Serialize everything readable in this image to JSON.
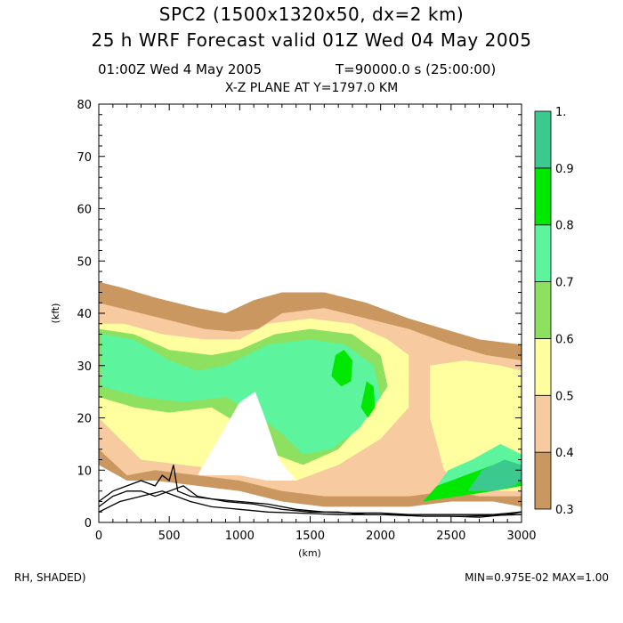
{
  "header": {
    "title1": "SPC2 (1500x1320x50, dx=2 km)",
    "title2": "25 h WRF Forecast valid 01Z Wed 04 May 2005",
    "time_left": "01:00Z Wed  4 May 2005",
    "time_right": "T=90000.0 s (25:00:00)",
    "plane": "X-Z PLANE AT Y=1797.0 KM"
  },
  "footer": {
    "left": "RH, SHADED)",
    "right": "MIN=0.975E-02 MAX=1.00"
  },
  "colors": {
    "rh_levels": [
      "#c9975f",
      "#f7caa0",
      "#ffffa0",
      "#8ee060",
      "#5cf49c",
      "#00e800",
      "#3cc98f"
    ]
  },
  "chart_data": {
    "type": "heatmap",
    "title": "X-Z PLANE AT Y=1797.0 KM",
    "xlabel": "(km)",
    "ylabel": "(kft)",
    "xlim": [
      0,
      3000
    ],
    "ylim": [
      0,
      80
    ],
    "x_ticks": [
      "0",
      "500",
      "1000",
      "1500",
      "2000",
      "2500",
      "3000"
    ],
    "y_ticks": [
      "0",
      "10",
      "20",
      "30",
      "40",
      "50",
      "60",
      "70",
      "80"
    ],
    "variable": "RH, SHADED",
    "colorbar": {
      "levels": [
        0.3,
        0.4,
        0.5,
        0.6,
        0.7,
        0.8,
        0.9,
        1.0
      ],
      "labels": [
        "0.3",
        "0.4",
        "0.5",
        "0.6",
        "0.7",
        "0.8",
        "0.9",
        "1."
      ]
    },
    "regions": [
      {
        "level": 0.3,
        "points": [
          [
            0,
            11
          ],
          [
            0,
            46
          ],
          [
            150,
            45
          ],
          [
            400,
            43
          ],
          [
            700,
            41
          ],
          [
            900,
            40
          ],
          [
            1100,
            42.5
          ],
          [
            1300,
            44
          ],
          [
            1600,
            44
          ],
          [
            1900,
            42
          ],
          [
            2200,
            39
          ],
          [
            2450,
            37
          ],
          [
            2700,
            35
          ],
          [
            3000,
            34
          ],
          [
            3000,
            3
          ],
          [
            2800,
            4
          ],
          [
            2500,
            4
          ],
          [
            2200,
            3
          ],
          [
            1900,
            3
          ],
          [
            1600,
            3
          ],
          [
            1300,
            4
          ],
          [
            1000,
            6
          ],
          [
            700,
            7
          ],
          [
            400,
            8
          ],
          [
            200,
            8
          ]
        ]
      },
      {
        "level": 0.4,
        "points": [
          [
            0,
            14
          ],
          [
            0,
            42
          ],
          [
            150,
            41
          ],
          [
            450,
            39
          ],
          [
            750,
            37
          ],
          [
            950,
            36.5
          ],
          [
            1130,
            37
          ],
          [
            1300,
            40
          ],
          [
            1600,
            41
          ],
          [
            1900,
            39
          ],
          [
            2200,
            37
          ],
          [
            2500,
            34
          ],
          [
            2750,
            32
          ],
          [
            3000,
            31
          ],
          [
            3000,
            5
          ],
          [
            2700,
            5
          ],
          [
            2500,
            6
          ],
          [
            2200,
            5
          ],
          [
            1900,
            5
          ],
          [
            1600,
            5
          ],
          [
            1300,
            6
          ],
          [
            1000,
            8
          ],
          [
            700,
            9
          ],
          [
            400,
            10
          ],
          [
            200,
            9
          ]
        ]
      },
      {
        "level": 0.5,
        "points": [
          [
            0,
            20
          ],
          [
            0,
            38
          ],
          [
            180,
            38
          ],
          [
            450,
            36
          ],
          [
            750,
            35
          ],
          [
            1000,
            35
          ],
          [
            1200,
            38
          ],
          [
            1500,
            39
          ],
          [
            1800,
            38
          ],
          [
            2050,
            35
          ],
          [
            2200,
            32
          ],
          [
            2200,
            22
          ],
          [
            2000,
            16
          ],
          [
            1700,
            11
          ],
          [
            1400,
            8
          ],
          [
            1100,
            9
          ],
          [
            900,
            10
          ],
          [
            600,
            11
          ],
          [
            300,
            12
          ]
        ]
      },
      {
        "level": 0.5,
        "points": [
          [
            2350,
            30
          ],
          [
            2600,
            31
          ],
          [
            2850,
            30
          ],
          [
            3000,
            29
          ],
          [
            3000,
            6
          ],
          [
            2800,
            6
          ],
          [
            2600,
            7
          ],
          [
            2450,
            10
          ],
          [
            2350,
            20
          ]
        ]
      },
      {
        "level": 0.6,
        "points": [
          [
            0,
            24
          ],
          [
            0,
            37
          ],
          [
            250,
            36
          ],
          [
            500,
            33
          ],
          [
            800,
            32
          ],
          [
            1000,
            33
          ],
          [
            1250,
            36
          ],
          [
            1500,
            37
          ],
          [
            1800,
            36
          ],
          [
            2000,
            32
          ],
          [
            2050,
            26
          ],
          [
            1900,
            20
          ],
          [
            1700,
            14
          ],
          [
            1450,
            11
          ],
          [
            1250,
            13
          ],
          [
            1050,
            18
          ],
          [
            800,
            22
          ],
          [
            500,
            21
          ],
          [
            250,
            22
          ]
        ]
      },
      {
        "level": 0.7,
        "points": [
          [
            20,
            26
          ],
          [
            20,
            36
          ],
          [
            250,
            35
          ],
          [
            500,
            31
          ],
          [
            700,
            29
          ],
          [
            900,
            30
          ],
          [
            1200,
            34
          ],
          [
            1500,
            35
          ],
          [
            1750,
            34
          ],
          [
            1950,
            30
          ],
          [
            2000,
            24
          ],
          [
            1850,
            18
          ],
          [
            1650,
            14
          ],
          [
            1450,
            13
          ],
          [
            1300,
            17
          ],
          [
            1100,
            21
          ],
          [
            900,
            24
          ],
          [
            600,
            23
          ],
          [
            300,
            24
          ]
        ]
      },
      {
        "level": 0.7,
        "points": [
          [
            2400,
            7
          ],
          [
            2650,
            6
          ],
          [
            2900,
            7
          ],
          [
            3000,
            8
          ],
          [
            3000,
            13
          ],
          [
            2850,
            15
          ],
          [
            2650,
            12
          ],
          [
            2480,
            10
          ]
        ]
      },
      {
        "level": 0.8,
        "points": [
          [
            1650,
            28
          ],
          [
            1720,
            26
          ],
          [
            1790,
            27
          ],
          [
            1800,
            31
          ],
          [
            1740,
            33
          ],
          [
            1680,
            32
          ]
        ]
      },
      {
        "level": 0.8,
        "points": [
          [
            1860,
            22
          ],
          [
            1910,
            20
          ],
          [
            1960,
            22
          ],
          [
            1950,
            26
          ],
          [
            1900,
            27
          ]
        ]
      },
      {
        "level": 0.8,
        "points": [
          [
            2300,
            4
          ],
          [
            2550,
            5
          ],
          [
            2800,
            6
          ],
          [
            3000,
            7
          ],
          [
            3000,
            10
          ],
          [
            2800,
            11
          ],
          [
            2600,
            9
          ],
          [
            2400,
            7
          ]
        ]
      },
      {
        "level": 0.9,
        "points": [
          [
            2620,
            6
          ],
          [
            2800,
            6
          ],
          [
            2950,
            7
          ],
          [
            3000,
            8
          ],
          [
            3000,
            11
          ],
          [
            2880,
            12
          ],
          [
            2720,
            10
          ]
        ]
      }
    ],
    "clear_regions": [
      {
        "points": [
          [
            700,
            9
          ],
          [
            850,
            16
          ],
          [
            1000,
            23
          ],
          [
            1110,
            25
          ],
          [
            1180,
            20
          ],
          [
            1280,
            12
          ],
          [
            1400,
            8
          ],
          [
            1200,
            8
          ],
          [
            1000,
            9
          ]
        ]
      }
    ],
    "contour_lines": [
      {
        "x": [
          0,
          100,
          200,
          300,
          400,
          450,
          500,
          530,
          560,
          650,
          800,
          1000,
          1200,
          1400,
          1600,
          1800,
          2000,
          2200,
          2400,
          2600,
          2800,
          3000
        ],
        "y": [
          4,
          6,
          7,
          8,
          7,
          9,
          8,
          11,
          6,
          5,
          4.5,
          4,
          3.5,
          2.5,
          2,
          1.8,
          1.8,
          1.5,
          1.5,
          1.5,
          1.5,
          2
        ]
      },
      {
        "x": [
          0,
          100,
          200,
          300,
          400,
          500,
          600,
          700,
          900,
          1100,
          1300,
          1500,
          1700,
          1900,
          2100,
          2300,
          2500,
          2700,
          2900,
          3000
        ],
        "y": [
          3,
          5,
          6,
          6,
          5,
          6,
          7,
          5,
          4,
          3.5,
          2.5,
          2,
          2,
          1.5,
          1.5,
          1.2,
          1.2,
          1,
          1.5,
          2
        ]
      },
      {
        "x": [
          0,
          150,
          300,
          450,
          550,
          650,
          800,
          1000,
          1200,
          1400,
          1700,
          2000,
          2300,
          2600,
          3000
        ],
        "y": [
          2,
          4,
          5,
          6,
          5,
          4,
          3,
          2.5,
          2,
          1.8,
          1.5,
          1.5,
          1.2,
          1.2,
          1.5
        ]
      }
    ]
  }
}
